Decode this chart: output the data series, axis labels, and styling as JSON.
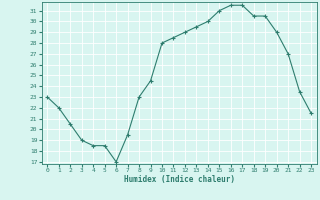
{
  "x": [
    0,
    1,
    2,
    3,
    4,
    5,
    6,
    7,
    8,
    9,
    10,
    11,
    12,
    13,
    14,
    15,
    16,
    17,
    18,
    19,
    20,
    21,
    22,
    23
  ],
  "y": [
    23,
    22,
    20.5,
    19,
    18.5,
    18.5,
    17,
    19.5,
    23,
    24.5,
    28,
    28.5,
    29,
    29.5,
    30,
    31,
    31.5,
    31.5,
    30.5,
    30.5,
    29,
    27,
    23.5,
    21.5
  ],
  "xlabel": "Humidex (Indice chaleur)",
  "ylabel": "",
  "ylim": [
    16.8,
    31.8
  ],
  "xlim": [
    -0.5,
    23.5
  ],
  "yticks": [
    17,
    18,
    19,
    20,
    21,
    22,
    23,
    24,
    25,
    26,
    27,
    28,
    29,
    30,
    31
  ],
  "xticks": [
    0,
    1,
    2,
    3,
    4,
    5,
    6,
    7,
    8,
    9,
    10,
    11,
    12,
    13,
    14,
    15,
    16,
    17,
    18,
    19,
    20,
    21,
    22,
    23
  ],
  "line_color": "#2e7d6e",
  "marker": "+",
  "bg_color": "#d8f5f0",
  "grid_color": "#ffffff"
}
